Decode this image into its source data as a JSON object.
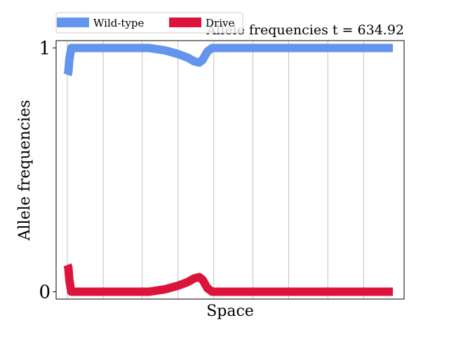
{
  "chart_data": {
    "type": "line",
    "title": "Allele frequencies t = 634.92",
    "xlabel": "Space",
    "ylabel": "Allele frequencies",
    "xlim": [
      0,
      1
    ],
    "ylim": [
      -0.03,
      1.03
    ],
    "yticks": [
      {
        "value": 0,
        "label": "0"
      },
      {
        "value": 1,
        "label": "1"
      }
    ],
    "x_grid_lines": [
      0.0,
      0.11,
      0.23,
      0.34,
      0.45,
      0.57,
      0.68,
      0.8,
      0.91
    ],
    "grid": true,
    "legend": {
      "placement": "top-left",
      "columns": 2
    },
    "series": [
      {
        "name": "Wild-type",
        "color": "#6495ED",
        "points": [
          [
            0.0,
            0.89
          ],
          [
            0.003,
            0.9
          ],
          [
            0.006,
            0.95
          ],
          [
            0.012,
            1.0
          ],
          [
            0.1,
            1.0
          ],
          [
            0.2,
            1.0
          ],
          [
            0.25,
            1.0
          ],
          [
            0.3,
            0.99
          ],
          [
            0.34,
            0.975
          ],
          [
            0.37,
            0.96
          ],
          [
            0.39,
            0.945
          ],
          [
            0.405,
            0.94
          ],
          [
            0.415,
            0.95
          ],
          [
            0.43,
            0.985
          ],
          [
            0.445,
            1.0
          ],
          [
            0.5,
            1.0
          ],
          [
            0.6,
            1.0
          ],
          [
            0.7,
            1.0
          ],
          [
            0.8,
            1.0
          ],
          [
            0.9,
            1.0
          ],
          [
            1.0,
            1.0
          ]
        ]
      },
      {
        "name": "Drive",
        "color": "#DC143C",
        "points": [
          [
            0.0,
            0.11
          ],
          [
            0.003,
            0.1
          ],
          [
            0.006,
            0.05
          ],
          [
            0.012,
            0.0
          ],
          [
            0.1,
            0.0
          ],
          [
            0.2,
            0.0
          ],
          [
            0.25,
            0.0
          ],
          [
            0.3,
            0.01
          ],
          [
            0.34,
            0.025
          ],
          [
            0.37,
            0.04
          ],
          [
            0.39,
            0.055
          ],
          [
            0.405,
            0.06
          ],
          [
            0.415,
            0.05
          ],
          [
            0.43,
            0.015
          ],
          [
            0.445,
            0.0
          ],
          [
            0.5,
            0.0
          ],
          [
            0.6,
            0.0
          ],
          [
            0.7,
            0.0
          ],
          [
            0.8,
            0.0
          ],
          [
            0.9,
            0.0
          ],
          [
            1.0,
            0.0
          ]
        ]
      }
    ]
  }
}
